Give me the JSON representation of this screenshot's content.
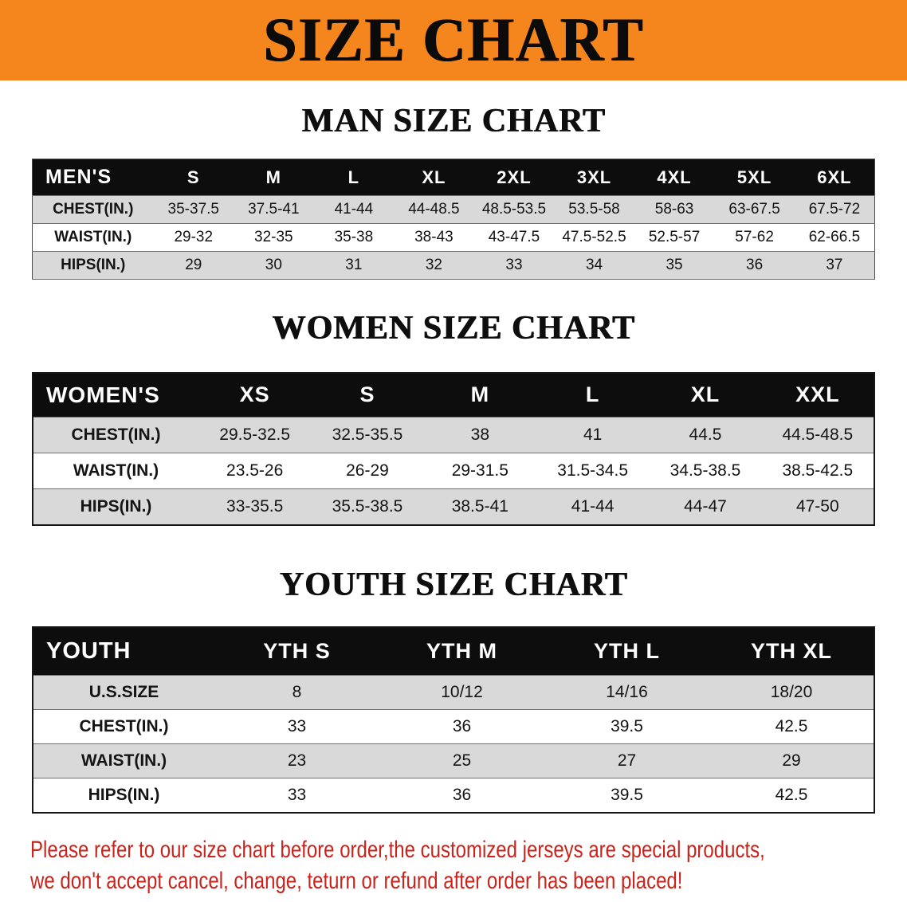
{
  "colors": {
    "banner_bg": "#F4861D",
    "header_bar_bg": "#0D0D0D",
    "row_alt_bg": "#D9D9D9",
    "disclaimer_text": "#C9231B"
  },
  "banner": {
    "title": "SIZE CHART"
  },
  "sections": [
    {
      "heading": "MAN SIZE CHART",
      "table": {
        "header": [
          "MEN'S",
          "S",
          "M",
          "L",
          "XL",
          "2XL",
          "3XL",
          "4XL",
          "5XL",
          "6XL"
        ],
        "rows": [
          [
            "CHEST(IN.)",
            "35-37.5",
            "37.5-41",
            "41-44",
            "44-48.5",
            "48.5-53.5",
            "53.5-58",
            "58-63",
            "63-67.5",
            "67.5-72"
          ],
          [
            "WAIST(IN.)",
            "29-32",
            "32-35",
            "35-38",
            "38-43",
            "43-47.5",
            "47.5-52.5",
            "52.5-57",
            "57-62",
            "62-66.5"
          ],
          [
            "HIPS(IN.)",
            "29",
            "30",
            "31",
            "32",
            "33",
            "34",
            "35",
            "36",
            "37"
          ]
        ]
      }
    },
    {
      "heading": "WOMEN SIZE CHART",
      "table": {
        "header": [
          "WOMEN'S",
          "XS",
          "S",
          "M",
          "L",
          "XL",
          "XXL"
        ],
        "rows": [
          [
            "CHEST(IN.)",
            "29.5-32.5",
            "32.5-35.5",
            "38",
            "41",
            "44.5",
            "44.5-48.5"
          ],
          [
            "WAIST(IN.)",
            "23.5-26",
            "26-29",
            "29-31.5",
            "31.5-34.5",
            "34.5-38.5",
            "38.5-42.5"
          ],
          [
            "HIPS(IN.)",
            "33-35.5",
            "35.5-38.5",
            "38.5-41",
            "41-44",
            "44-47",
            "47-50"
          ]
        ]
      }
    },
    {
      "heading": "YOUTH SIZE CHART",
      "table": {
        "header": [
          "YOUTH",
          "YTH S",
          "YTH M",
          "YTH L",
          "YTH XL"
        ],
        "rows": [
          [
            "U.S.SIZE",
            "8",
            "10/12",
            "14/16",
            "18/20"
          ],
          [
            "CHEST(IN.)",
            "33",
            "36",
            "39.5",
            "42.5"
          ],
          [
            "WAIST(IN.)",
            "23",
            "25",
            "27",
            "29"
          ],
          [
            "HIPS(IN.)",
            "33",
            "36",
            "39.5",
            "42.5"
          ]
        ]
      }
    }
  ],
  "disclaimer": {
    "lines": [
      "Please refer to our size chart before order,the customized jerseys are special products,",
      "we don't accept cancel, change, teturn or refund after order has been placed!"
    ]
  }
}
